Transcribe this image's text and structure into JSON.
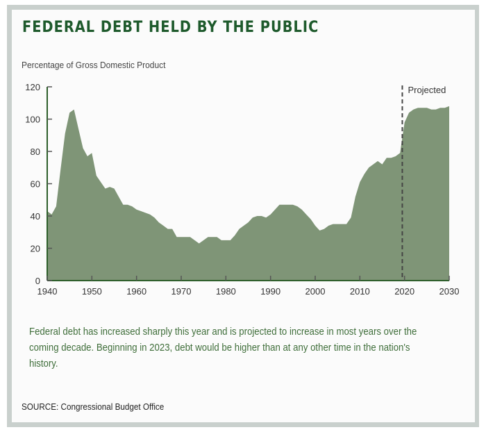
{
  "chart_data": {
    "type": "area",
    "title": "FEDERAL DEBT HELD BY THE PUBLIC",
    "ylabel": "Percentage of Gross Domestic Product",
    "xlabel": "",
    "xlim": [
      1940,
      2030
    ],
    "ylim": [
      0,
      120
    ],
    "x_ticks": [
      1940,
      1950,
      1960,
      1970,
      1980,
      1990,
      2000,
      2010,
      2020,
      2030
    ],
    "y_ticks": [
      0,
      20,
      40,
      60,
      80,
      100,
      120
    ],
    "grid": false,
    "fill_color": "#7f9577",
    "axis_color": "#2d5e2a",
    "annotation": {
      "label": "Projected",
      "x": 2019.5
    },
    "x": [
      1940,
      1941,
      1942,
      1943,
      1944,
      1945,
      1946,
      1947,
      1948,
      1949,
      1950,
      1951,
      1952,
      1953,
      1954,
      1955,
      1956,
      1957,
      1958,
      1959,
      1960,
      1961,
      1962,
      1963,
      1964,
      1965,
      1966,
      1967,
      1968,
      1969,
      1970,
      1971,
      1972,
      1973,
      1974,
      1975,
      1976,
      1977,
      1978,
      1979,
      1980,
      1981,
      1982,
      1983,
      1984,
      1985,
      1986,
      1987,
      1988,
      1989,
      1990,
      1991,
      1992,
      1993,
      1994,
      1995,
      1996,
      1997,
      1998,
      1999,
      2000,
      2001,
      2002,
      2003,
      2004,
      2005,
      2006,
      2007,
      2008,
      2009,
      2010,
      2011,
      2012,
      2013,
      2014,
      2015,
      2016,
      2017,
      2018,
      2019,
      2020,
      2021,
      2022,
      2023,
      2024,
      2025,
      2026,
      2027,
      2028,
      2029,
      2030
    ],
    "values": [
      43,
      41,
      46,
      69,
      91,
      104,
      106,
      94,
      82,
      77,
      79,
      65,
      61,
      57,
      58,
      57,
      52,
      47,
      47,
      46,
      44,
      43,
      42,
      41,
      39,
      36,
      34,
      32,
      32,
      27,
      27,
      27,
      27,
      25,
      23,
      25,
      27,
      27,
      27,
      25,
      25,
      25,
      28,
      32,
      34,
      36,
      39,
      40,
      40,
      39,
      41,
      44,
      47,
      47,
      47,
      47,
      46,
      44,
      41,
      38,
      34,
      31,
      32,
      34,
      35,
      35,
      35,
      35,
      39,
      52,
      61,
      66,
      70,
      72,
      74,
      72,
      76,
      76,
      77,
      79,
      98,
      104,
      106,
      107,
      107,
      107,
      106,
      106,
      107,
      107,
      108
    ]
  },
  "note": "Federal debt has increased sharply this year and is projected to increase in most years over the coming decade. Beginning in 2023, debt would be higher than at any other time in the nation's history.",
  "source": "SOURCE: Congressional Budget Office"
}
